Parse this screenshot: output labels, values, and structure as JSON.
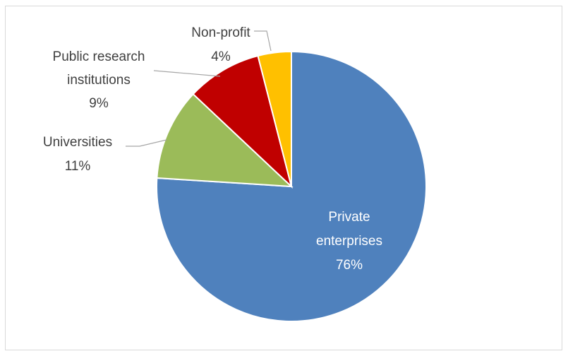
{
  "chart_data": {
    "type": "pie",
    "categories": [
      "Private enterprises",
      "Universities",
      "Public research institutions",
      "Non-profit"
    ],
    "values": [
      76,
      11,
      9,
      4
    ],
    "labels": [
      {
        "name": "Private enterprises",
        "value": "76%"
      },
      {
        "name": "Universities",
        "value": "11%"
      },
      {
        "name": "Public research institutions",
        "value": "9%"
      },
      {
        "name": "Non-profit",
        "value": "4%"
      }
    ],
    "colors": [
      "#4f81bd",
      "#9bbb59",
      "#c00000",
      "#ffc000"
    ],
    "start_angle": "12 o'clock",
    "direction": "clockwise",
    "legend": "none"
  }
}
